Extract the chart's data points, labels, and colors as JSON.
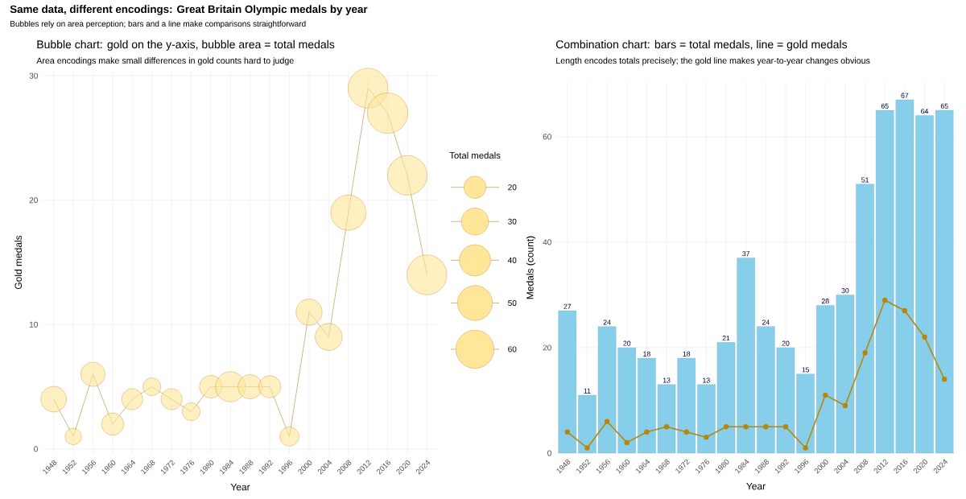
{
  "chart_data": [
    {
      "type": "other",
      "title": "Same data, different encodings: Great Britain Olympic medals by year",
      "subtitle": "Bubbles rely on area perception; bars and a line make comparisons straightforward"
    },
    {
      "type": "bubble",
      "title": "Bubble chart: gold on the y-axis, bubble area = total medals",
      "subtitle": "Area encodings make small differences in gold counts hard to judge",
      "xlabel": "Year",
      "ylabel": "Gold medals",
      "legend_title": "Total medals",
      "grid": true,
      "categories": [
        "1948",
        "1952",
        "1956",
        "1960",
        "1964",
        "1968",
        "1972",
        "1976",
        "1980",
        "1984",
        "1988",
        "1992",
        "1996",
        "2000",
        "2004",
        "2008",
        "2012",
        "2016",
        "2020",
        "2024"
      ],
      "ylim": [
        -0.4,
        30.4
      ],
      "yticks": [
        0,
        10,
        20,
        30
      ],
      "size_legend": [
        20,
        30,
        40,
        50,
        60
      ],
      "series": [
        {
          "type": "line",
          "color": "#c2a86b",
          "values": [
            4,
            1,
            6,
            2,
            4,
            5,
            4,
            3,
            5,
            5,
            5,
            5,
            1,
            11,
            9,
            19,
            29,
            27,
            22,
            14
          ]
        },
        {
          "type": "bubble",
          "color": "#ffe699",
          "values": [
            4,
            1,
            6,
            2,
            4,
            5,
            4,
            3,
            5,
            5,
            5,
            5,
            1,
            11,
            9,
            19,
            29,
            27,
            22,
            14
          ],
          "sizes": [
            27,
            11,
            24,
            20,
            18,
            13,
            18,
            13,
            21,
            37,
            24,
            20,
            15,
            28,
            30,
            51,
            65,
            67,
            64,
            65
          ]
        }
      ]
    },
    {
      "type": "bar",
      "title": "Combination chart: bars = total medals, line = gold medals",
      "subtitle": "Length encodes totals precisely; the gold line makes year-to-year changes obvious",
      "xlabel": "Year",
      "ylabel": "Medals (count)",
      "grid": true,
      "categories": [
        "1948",
        "1952",
        "1956",
        "1960",
        "1964",
        "1968",
        "1972",
        "1976",
        "1980",
        "1984",
        "1988",
        "1992",
        "1996",
        "2000",
        "2004",
        "2008",
        "2012",
        "2016",
        "2020",
        "2024"
      ],
      "ylim": [
        0,
        70.35
      ],
      "yticks": [
        0,
        20,
        40,
        60
      ],
      "series": [
        {
          "type": "bar",
          "color": "#87ceeb",
          "data_labels": true,
          "values": [
            27,
            11,
            24,
            20,
            18,
            13,
            18,
            13,
            21,
            37,
            24,
            20,
            15,
            28,
            30,
            51,
            65,
            67,
            64,
            65
          ]
        },
        {
          "type": "line",
          "color": "#b8860b",
          "marker": "circle",
          "values": [
            4,
            1,
            6,
            2,
            4,
            5,
            4,
            3,
            5,
            5,
            5,
            5,
            1,
            11,
            9,
            19,
            29,
            27,
            22,
            14
          ]
        }
      ]
    }
  ]
}
